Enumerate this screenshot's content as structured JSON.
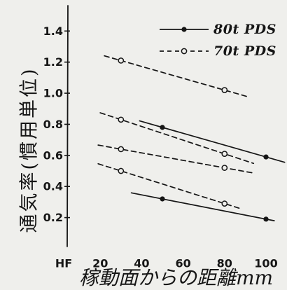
{
  "colors": {
    "ink": "#161616",
    "paper": "#efefec"
  },
  "chart_data": {
    "type": "line",
    "xlabel": "稼動面からの距離mm",
    "ylabel": "通気率(慣用単位)",
    "xlim": [
      0,
      110
    ],
    "ylim": [
      0,
      1.55
    ],
    "grid": false,
    "x_ticks": [
      {
        "label": "HF",
        "value": 0
      },
      {
        "label": "20",
        "value": 20
      },
      {
        "label": "40",
        "value": 40
      },
      {
        "label": "60",
        "value": 60
      },
      {
        "label": "80",
        "value": 80
      },
      {
        "label": "100",
        "value": 100
      }
    ],
    "y_ticks": [
      {
        "label": "0.2",
        "value": 0.2
      },
      {
        "label": "0.4",
        "value": 0.4
      },
      {
        "label": "0.6",
        "value": 0.6
      },
      {
        "label": "0.8",
        "value": 0.8
      },
      {
        "label": "1.0",
        "value": 1.0
      },
      {
        "label": "1.2",
        "value": 1.2
      },
      {
        "label": "1.4",
        "value": 1.4
      }
    ],
    "legend": {
      "position": "top-right",
      "entries": [
        {
          "label": "80t PDS",
          "line": "solid",
          "marker": "filled-circle"
        },
        {
          "label": "70t PDS",
          "line": "dashed",
          "marker": "open-circle"
        }
      ]
    },
    "series": [
      {
        "legend": 1,
        "x": [
          30,
          80
        ],
        "y": [
          1.21,
          1.02
        ],
        "line_extent_x": [
          22,
          92
        ]
      },
      {
        "legend": 1,
        "x": [
          30,
          80
        ],
        "y": [
          0.83,
          0.61
        ],
        "line_extent_x": [
          20,
          94
        ]
      },
      {
        "legend": 1,
        "x": [
          30,
          80
        ],
        "y": [
          0.64,
          0.52
        ],
        "line_extent_x": [
          19,
          94
        ]
      },
      {
        "legend": 1,
        "x": [
          30,
          80
        ],
        "y": [
          0.5,
          0.29
        ],
        "line_extent_x": [
          19,
          87
        ]
      },
      {
        "legend": 0,
        "x": [
          50,
          100
        ],
        "y": [
          0.78,
          0.59
        ],
        "line_extent_x": [
          39,
          109
        ]
      },
      {
        "legend": 0,
        "x": [
          50,
          100
        ],
        "y": [
          0.32,
          0.19
        ],
        "line_extent_x": [
          35,
          104
        ]
      }
    ]
  }
}
